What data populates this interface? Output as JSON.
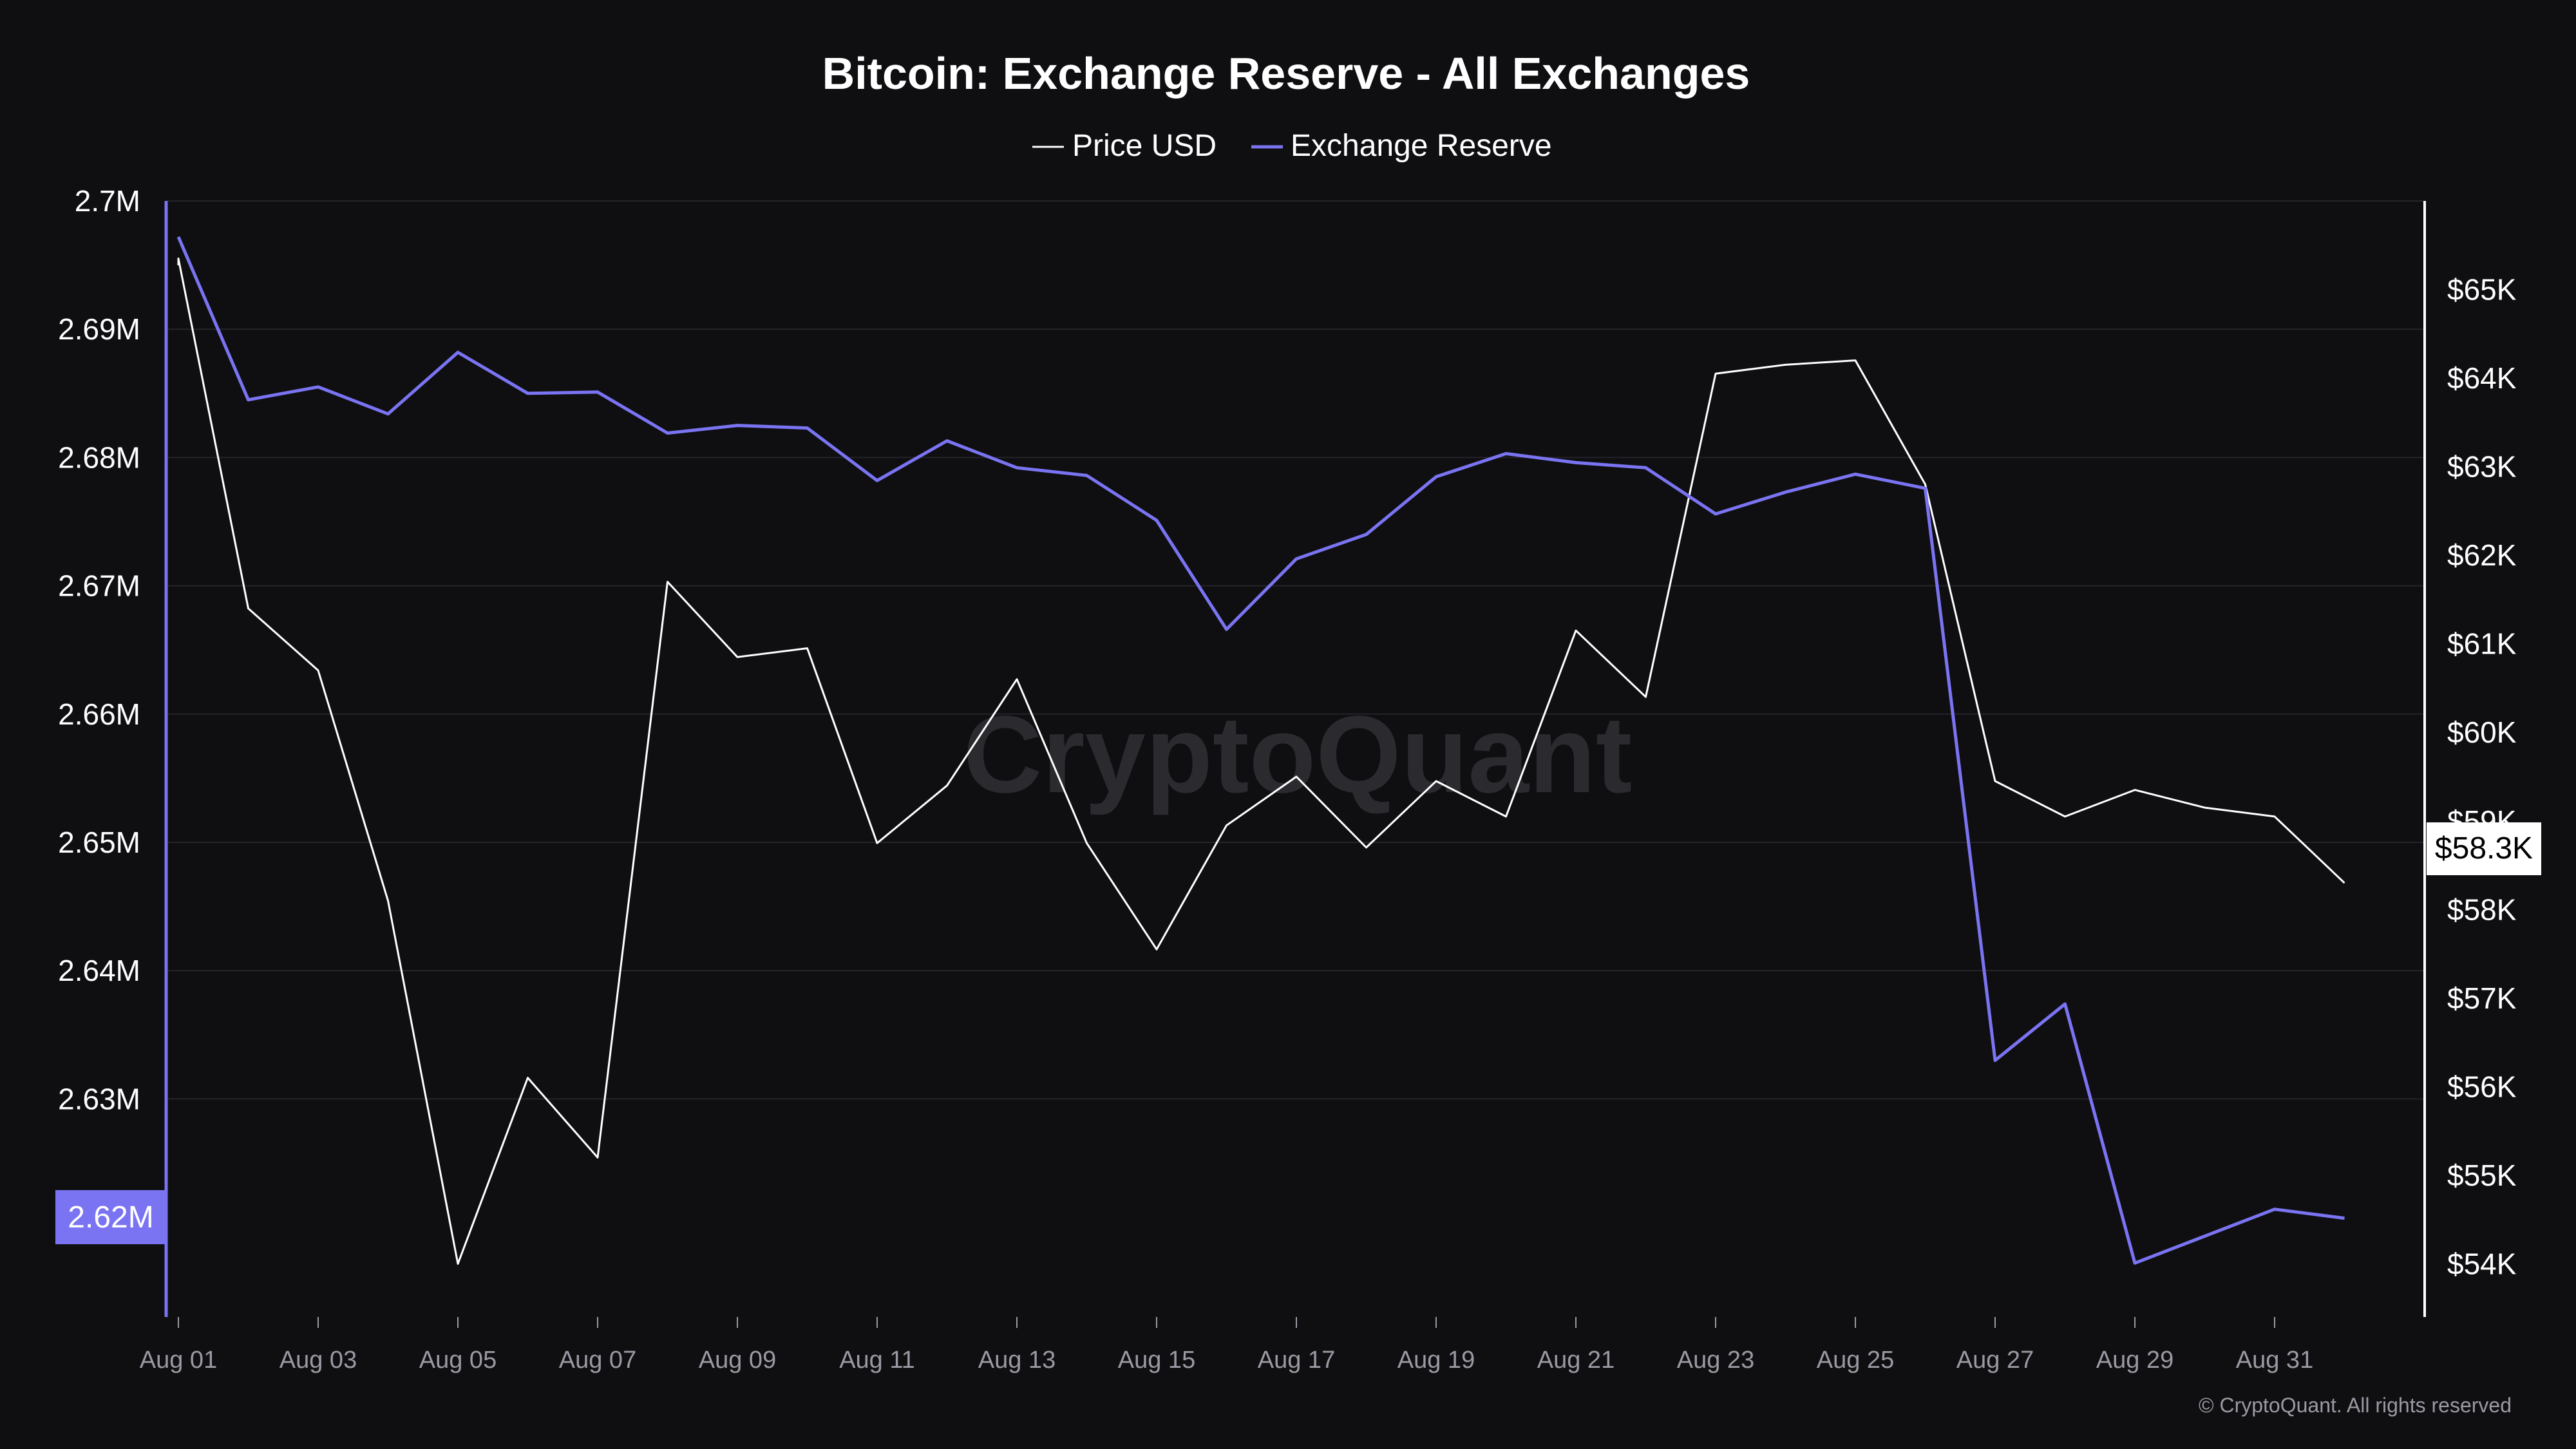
{
  "chart_data": {
    "type": "line",
    "title": "Bitcoin: Exchange Reserve - All Exchanges",
    "legend": [
      {
        "name": "Price USD",
        "color": "#ffffff"
      },
      {
        "name": "Exchange Reserve",
        "color": "#7b74f2"
      }
    ],
    "x_ticks": [
      "Aug 01",
      "Aug 03",
      "Aug 05",
      "Aug 07",
      "Aug 09",
      "Aug 11",
      "Aug 13",
      "Aug 15",
      "Aug 17",
      "Aug 19",
      "Aug 21",
      "Aug 23",
      "Aug 25",
      "Aug 27",
      "Aug 29",
      "Aug 31"
    ],
    "x": [
      "Aug 01",
      "Aug 02",
      "Aug 03",
      "Aug 04",
      "Aug 05",
      "Aug 06",
      "Aug 07",
      "Aug 08",
      "Aug 09",
      "Aug 10",
      "Aug 11",
      "Aug 12",
      "Aug 13",
      "Aug 14",
      "Aug 15",
      "Aug 16",
      "Aug 17",
      "Aug 18",
      "Aug 19",
      "Aug 20",
      "Aug 21",
      "Aug 22",
      "Aug 23",
      "Aug 24",
      "Aug 25",
      "Aug 26",
      "Aug 27",
      "Aug 28",
      "Aug 29",
      "Aug 30",
      "Aug 31",
      "Sep 01"
    ],
    "left_axis": {
      "ticks": [
        "2.7M",
        "2.69M",
        "2.68M",
        "2.67M",
        "2.66M",
        "2.65M",
        "2.64M",
        "2.63M"
      ],
      "min": 2.613,
      "max": 2.7,
      "unit": "M"
    },
    "right_axis": {
      "ticks": [
        "$65K",
        "$64K",
        "$63K",
        "$62K",
        "$61K",
        "$60K",
        "$59K",
        "$58K",
        "$57K",
        "$56K",
        "$55K",
        "$54K"
      ],
      "min": 53.4,
      "max": 66.0,
      "unit": "K"
    },
    "series": [
      {
        "name": "Exchange Reserve",
        "axis": "left",
        "color": "#7b74f2",
        "values": [
          2.6972,
          2.6845,
          2.6855,
          2.6834,
          2.6882,
          2.685,
          2.6851,
          2.6819,
          2.6825,
          2.6823,
          2.6782,
          2.6813,
          2.6792,
          2.6786,
          2.6751,
          2.6666,
          2.6721,
          2.674,
          2.6785,
          2.6803,
          2.6796,
          2.6792,
          2.6756,
          2.6773,
          2.6787,
          2.6776,
          2.633,
          2.6374,
          2.6172,
          2.6193,
          2.6214,
          2.6207
        ]
      },
      {
        "name": "Price USD",
        "axis": "right",
        "color": "#ffffff",
        "values": [
          65.35,
          61.4,
          60.7,
          58.1,
          54.0,
          56.1,
          55.2,
          61.7,
          60.85,
          60.95,
          58.75,
          59.4,
          60.6,
          58.75,
          57.55,
          58.95,
          59.5,
          58.7,
          59.45,
          59.05,
          61.15,
          60.4,
          64.05,
          64.15,
          64.2,
          62.8,
          59.45,
          59.05,
          59.35,
          59.15,
          59.05,
          58.3
        ]
      }
    ],
    "current_left_label": "2.62M",
    "current_right_label": "$58.3K",
    "watermark": "CryptoQuant",
    "copyright": "© CryptoQuant. All rights reserved"
  }
}
